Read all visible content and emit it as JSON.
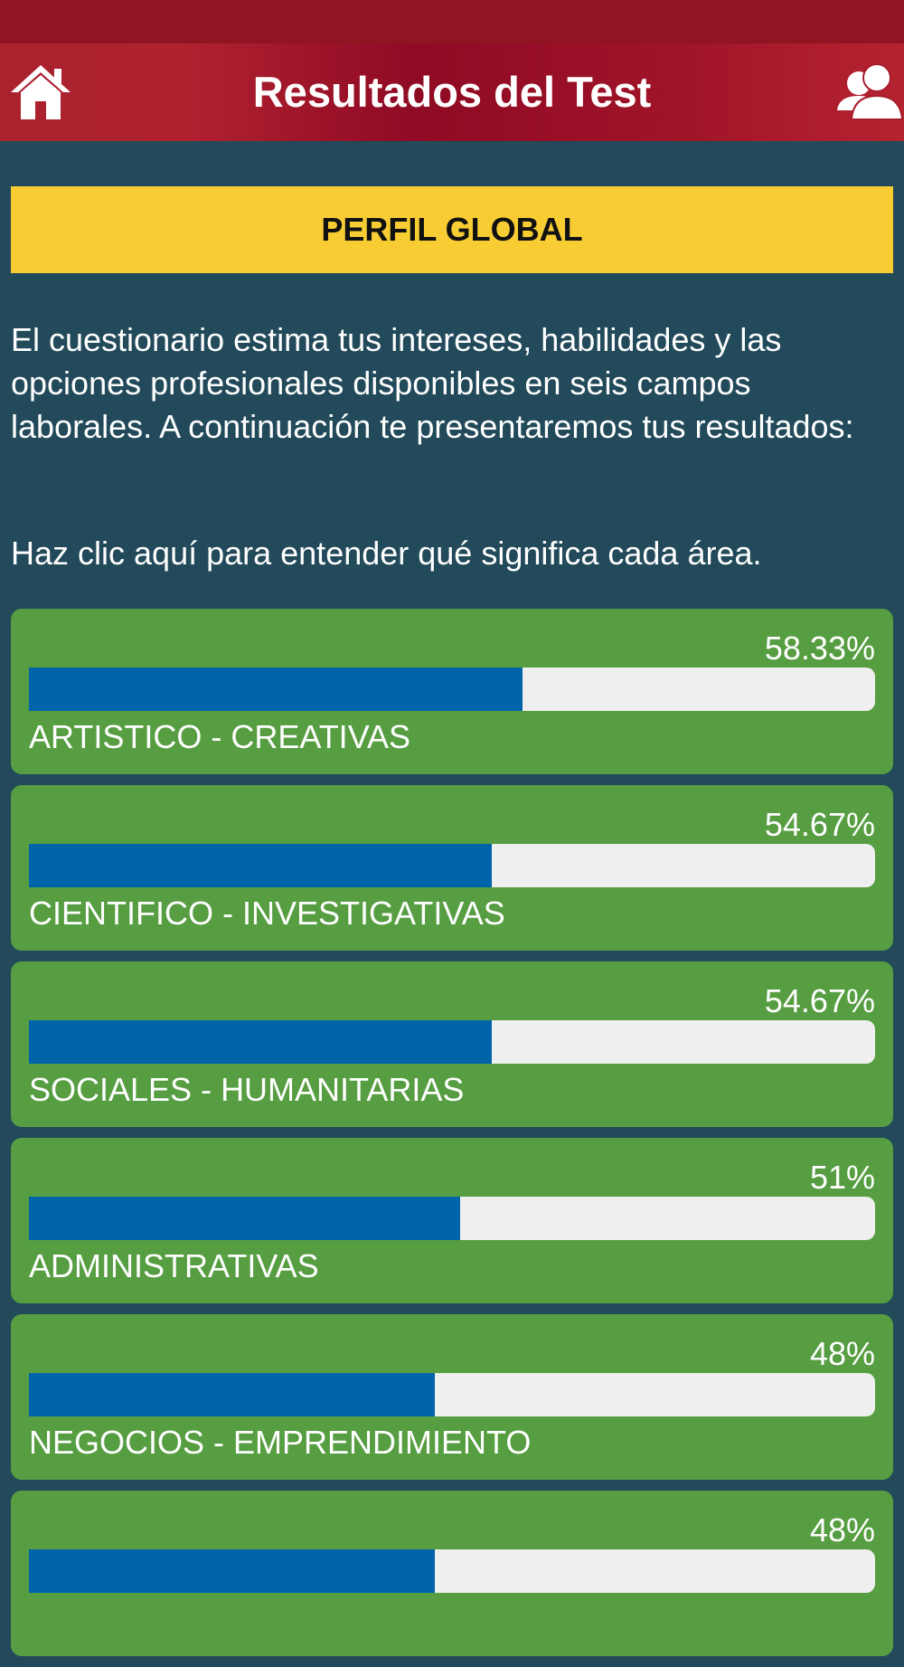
{
  "header": {
    "title": "Resultados del Test"
  },
  "banner": {
    "title": "PERFIL GLOBAL"
  },
  "intro": "El cuestionario estima tus intereses, habilidades y las opciones profesionales disponibles en seis campos laborales. A continuación te presentaremos tus resultados:",
  "help_link": "Haz clic aquí para entender qué significa cada área.",
  "results": [
    {
      "label": "ARTISTICO - CREATIVAS",
      "percent_text": "58.33%",
      "value": 58.33
    },
    {
      "label": "CIENTIFICO - INVESTIGATIVAS",
      "percent_text": "54.67%",
      "value": 54.67
    },
    {
      "label": "SOCIALES - HUMANITARIAS",
      "percent_text": "54.67%",
      "value": 54.67
    },
    {
      "label": "ADMINISTRATIVAS",
      "percent_text": "51%",
      "value": 51
    },
    {
      "label": "NEGOCIOS - EMPRENDIMIENTO",
      "percent_text": "48%",
      "value": 48
    },
    {
      "label": "",
      "percent_text": "48%",
      "value": 48
    }
  ],
  "icons": {
    "left": "home-icon",
    "right": "users-icon"
  },
  "colors": {
    "header": "#9a1027",
    "banner": "#f8cd34",
    "background": "#224a5a",
    "card": "#579e42",
    "bar_fill": "#0064a9",
    "bar_track": "#efefef"
  }
}
